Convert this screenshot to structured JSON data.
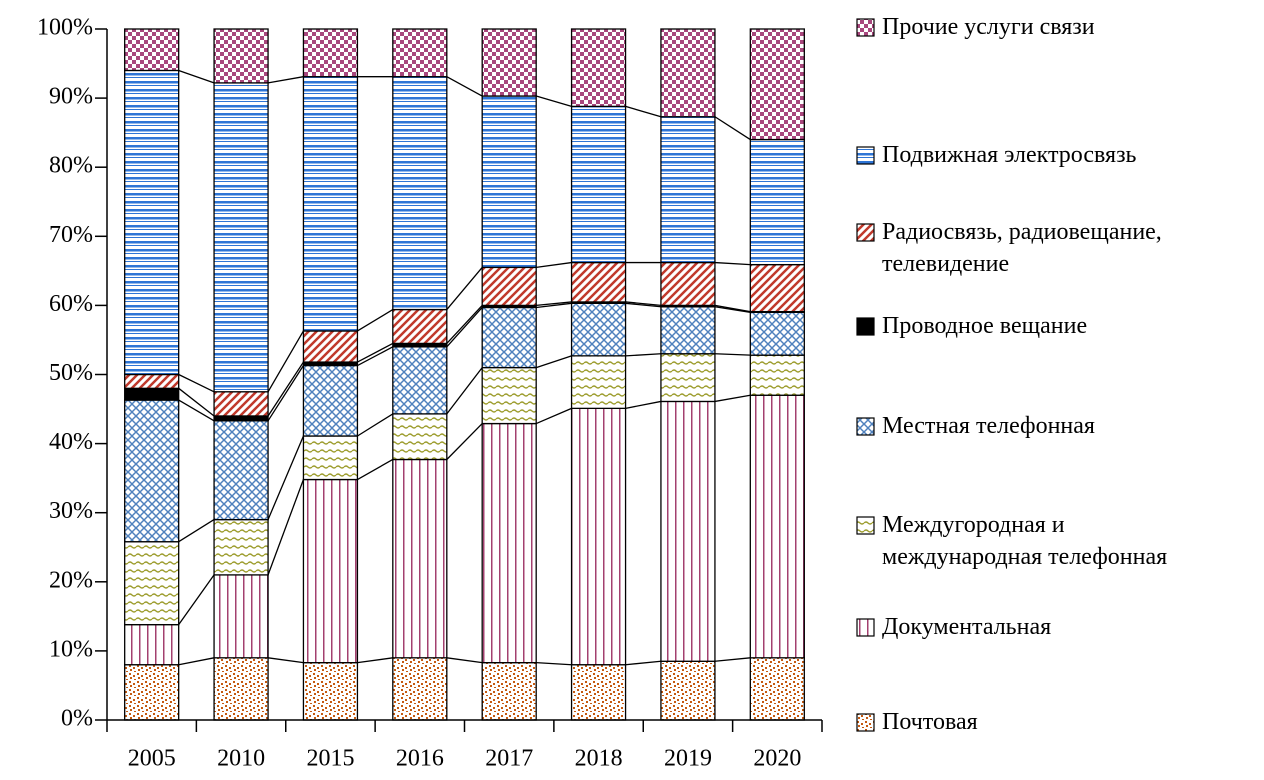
{
  "chart_data": {
    "type": "stacked_bar_100",
    "categories": [
      "2005",
      "2010",
      "2015",
      "2016",
      "2017",
      "2018",
      "2019",
      "2020"
    ],
    "series": [
      {
        "name": "Почтовая",
        "color": "#c55a11",
        "pattern": "dots",
        "values": [
          8,
          9,
          8.3,
          9,
          8.3,
          8,
          8.5,
          9
        ]
      },
      {
        "name": "Документальная",
        "color": "#a3406f",
        "pattern": "vertical",
        "values": [
          5.8,
          12,
          26.5,
          28.7,
          34.6,
          37.1,
          37.6,
          38
        ]
      },
      {
        "name": "Междугородная и\nмеждународная телефонная",
        "color": "#9c9c2c",
        "pattern": "wave",
        "values": [
          12,
          8,
          6.3,
          6.6,
          8.1,
          7.6,
          6.9,
          5.8
        ]
      },
      {
        "name": "Местная телефонная",
        "color": "#4f81bd",
        "pattern": "weave",
        "values": [
          20.5,
          14.3,
          10.2,
          9.7,
          8.7,
          7.6,
          6.8,
          6.2
        ]
      },
      {
        "name": "Проводное вещание",
        "color": "#000000",
        "pattern": "solid",
        "values": [
          1.7,
          0.7,
          0.5,
          0.5,
          0.3,
          0.2,
          0.2,
          0.1
        ]
      },
      {
        "name": "Радиосвязь, радиовещание,\nтелевидение",
        "color": "#c0392b",
        "pattern": "diagonal",
        "values": [
          2,
          3.5,
          4.5,
          4.9,
          5.5,
          5.7,
          6.2,
          6.8
        ]
      },
      {
        "name": "Подвижная электросвязь",
        "color": "#2e75d6",
        "pattern": "horizontal",
        "values": [
          44,
          44.7,
          36.8,
          33.7,
          24.8,
          22.6,
          21.1,
          18.1
        ]
      },
      {
        "name": "Прочие услуги связи",
        "color": "#a8477d",
        "pattern": "checker",
        "values": [
          6,
          7.8,
          6.9,
          6.9,
          9.7,
          11.2,
          12.7,
          16
        ]
      }
    ],
    "ylim": [
      0,
      100
    ],
    "yticks": [
      {
        "value": 0,
        "label": "0%"
      },
      {
        "value": 10,
        "label": "10%"
      },
      {
        "value": 20,
        "label": "20%"
      },
      {
        "value": 30,
        "label": "30%"
      },
      {
        "value": 40,
        "label": "40%"
      },
      {
        "value": 50,
        "label": "50%"
      },
      {
        "value": 60,
        "label": "60%"
      },
      {
        "value": 70,
        "label": "70%"
      },
      {
        "value": 80,
        "label": "80%"
      },
      {
        "value": 90,
        "label": "90%"
      },
      {
        "value": 100,
        "label": "100%"
      }
    ],
    "legend": "right"
  }
}
